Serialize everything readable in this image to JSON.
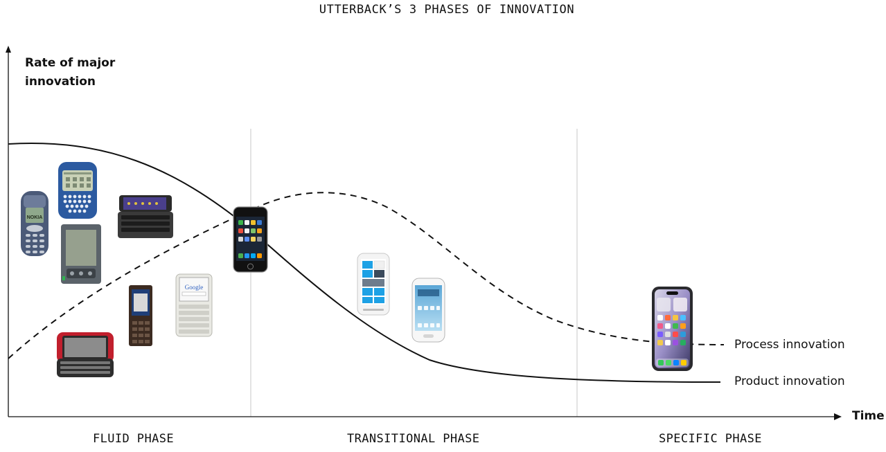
{
  "title": "UTTERBACK’S 3 PHASES OF INNOVATION",
  "y_axis_label": "Rate of major innovation",
  "x_axis_label": "Time",
  "phases": [
    "FLUID PHASE",
    "TRANSITIONAL PHASE",
    "SPECIFIC PHASE"
  ],
  "curves": {
    "process": {
      "label": "Process innovation",
      "style": "dashed"
    },
    "product": {
      "label": "Product innovation",
      "style": "solid"
    }
  },
  "colors": {
    "line": "#111111",
    "divider": "#d0d0d0",
    "background": "#ffffff"
  },
  "phones": {
    "nokia": {
      "brand_text": "NOKIA"
    },
    "google": {
      "screen_text": "Google"
    }
  }
}
